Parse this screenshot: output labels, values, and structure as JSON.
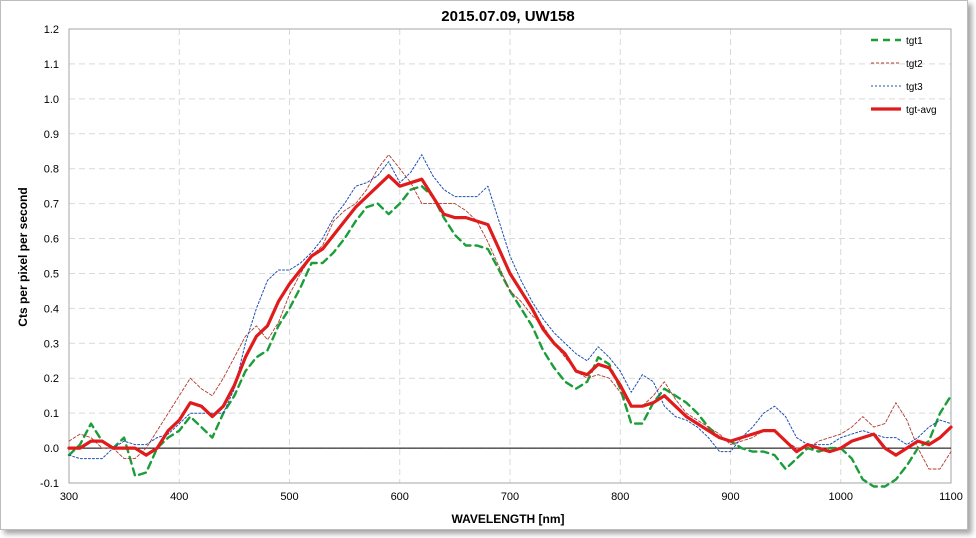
{
  "chart_data": {
    "type": "line",
    "title": "2015.07.09, UW158",
    "xlabel": "WAVELENGTH [nm]",
    "ylabel": "Cts per pixel per second",
    "xlim": [
      300,
      1100
    ],
    "ylim": [
      -0.1,
      1.2
    ],
    "xticks": [
      "300",
      "400",
      "500",
      "600",
      "700",
      "800",
      "900",
      "1000",
      "1100"
    ],
    "yticks": [
      "-0.1",
      "0.0",
      "0.1",
      "0.2",
      "0.3",
      "0.4",
      "0.5",
      "0.6",
      "0.7",
      "0.8",
      "0.9",
      "1.0",
      "1.1",
      "1.2"
    ],
    "grid": true,
    "legend_position": "top-right",
    "zero_line": true,
    "x": [
      300,
      310,
      320,
      330,
      340,
      350,
      360,
      370,
      380,
      390,
      400,
      410,
      420,
      430,
      440,
      450,
      460,
      470,
      480,
      490,
      500,
      510,
      520,
      530,
      540,
      550,
      560,
      570,
      580,
      590,
      600,
      610,
      620,
      630,
      640,
      650,
      660,
      670,
      680,
      690,
      700,
      710,
      720,
      730,
      740,
      750,
      760,
      770,
      780,
      790,
      800,
      810,
      820,
      830,
      840,
      850,
      860,
      870,
      880,
      890,
      900,
      910,
      920,
      930,
      940,
      950,
      960,
      970,
      980,
      990,
      1000,
      1010,
      1020,
      1030,
      1040,
      1050,
      1060,
      1070,
      1080,
      1090,
      1100
    ],
    "series": [
      {
        "name": "tgt1",
        "color": "#1a9e3a",
        "dash": "dashed",
        "values": [
          -0.02,
          0.01,
          0.07,
          0.02,
          0.0,
          0.03,
          -0.08,
          -0.07,
          0.0,
          0.03,
          0.05,
          0.09,
          0.06,
          0.03,
          0.1,
          0.15,
          0.22,
          0.26,
          0.28,
          0.35,
          0.4,
          0.46,
          0.53,
          0.53,
          0.56,
          0.6,
          0.65,
          0.69,
          0.7,
          0.67,
          0.7,
          0.74,
          0.75,
          0.72,
          0.66,
          0.61,
          0.58,
          0.58,
          0.57,
          0.51,
          0.45,
          0.4,
          0.35,
          0.28,
          0.23,
          0.19,
          0.17,
          0.19,
          0.26,
          0.24,
          0.17,
          0.07,
          0.07,
          0.13,
          0.17,
          0.15,
          0.13,
          0.1,
          0.06,
          0.03,
          0.02,
          0.0,
          -0.01,
          -0.01,
          -0.02,
          -0.06,
          -0.03,
          0.0,
          -0.01,
          0.0,
          0.0,
          -0.03,
          -0.09,
          -0.11,
          -0.11,
          -0.09,
          -0.05,
          0.0,
          0.02,
          0.1,
          0.15
        ]
      },
      {
        "name": "tgt2",
        "color": "#b03a30",
        "dash": "fine",
        "values": [
          0.02,
          0.04,
          0.03,
          0.0,
          0.0,
          -0.03,
          -0.03,
          0.0,
          0.05,
          0.1,
          0.15,
          0.2,
          0.17,
          0.15,
          0.2,
          0.26,
          0.32,
          0.35,
          0.31,
          0.36,
          0.44,
          0.5,
          0.55,
          0.58,
          0.65,
          0.68,
          0.7,
          0.74,
          0.8,
          0.84,
          0.8,
          0.76,
          0.7,
          0.7,
          0.7,
          0.7,
          0.68,
          0.65,
          0.59,
          0.52,
          0.45,
          0.42,
          0.38,
          0.35,
          0.3,
          0.26,
          0.22,
          0.2,
          0.21,
          0.2,
          0.16,
          0.12,
          0.12,
          0.15,
          0.19,
          0.14,
          0.1,
          0.08,
          0.06,
          0.04,
          0.01,
          0.02,
          0.03,
          0.05,
          0.05,
          0.02,
          0.0,
          0.0,
          0.02,
          0.03,
          0.04,
          0.06,
          0.09,
          0.06,
          0.07,
          0.13,
          0.08,
          0.0,
          -0.06,
          -0.06,
          -0.01
        ]
      },
      {
        "name": "tgt3",
        "color": "#1f4fb5",
        "dash": "dotted",
        "values": [
          -0.02,
          -0.03,
          -0.03,
          -0.03,
          0.0,
          0.02,
          0.01,
          0.01,
          0.03,
          0.04,
          0.07,
          0.1,
          0.1,
          0.1,
          0.1,
          0.17,
          0.3,
          0.4,
          0.48,
          0.51,
          0.51,
          0.53,
          0.56,
          0.6,
          0.66,
          0.7,
          0.75,
          0.76,
          0.78,
          0.82,
          0.76,
          0.79,
          0.84,
          0.78,
          0.74,
          0.72,
          0.72,
          0.72,
          0.75,
          0.65,
          0.55,
          0.48,
          0.42,
          0.37,
          0.33,
          0.3,
          0.27,
          0.25,
          0.29,
          0.26,
          0.22,
          0.16,
          0.21,
          0.19,
          0.12,
          0.09,
          0.08,
          0.06,
          0.03,
          -0.01,
          -0.01,
          0.03,
          0.06,
          0.1,
          0.12,
          0.09,
          0.03,
          0.01,
          0.01,
          0.01,
          0.03,
          0.04,
          0.05,
          0.04,
          0.03,
          0.03,
          0.01,
          0.03,
          0.06,
          0.08,
          0.07
        ]
      },
      {
        "name": "tgt-avg",
        "color": "#e01b1b",
        "dash": "solid",
        "values": [
          0.0,
          0.0,
          0.02,
          0.02,
          0.0,
          0.0,
          0.0,
          -0.02,
          0.0,
          0.05,
          0.08,
          0.13,
          0.12,
          0.09,
          0.12,
          0.18,
          0.26,
          0.32,
          0.35,
          0.42,
          0.47,
          0.51,
          0.55,
          0.57,
          0.61,
          0.65,
          0.69,
          0.72,
          0.75,
          0.78,
          0.75,
          0.76,
          0.77,
          0.72,
          0.67,
          0.66,
          0.66,
          0.65,
          0.64,
          0.57,
          0.5,
          0.45,
          0.4,
          0.34,
          0.3,
          0.27,
          0.22,
          0.21,
          0.24,
          0.23,
          0.18,
          0.12,
          0.12,
          0.13,
          0.15,
          0.12,
          0.09,
          0.07,
          0.05,
          0.03,
          0.02,
          0.03,
          0.04,
          0.05,
          0.05,
          0.02,
          -0.01,
          0.01,
          0.0,
          -0.01,
          0.0,
          0.02,
          0.03,
          0.04,
          0.0,
          -0.02,
          0.0,
          0.02,
          0.01,
          0.03,
          0.06
        ]
      }
    ]
  }
}
